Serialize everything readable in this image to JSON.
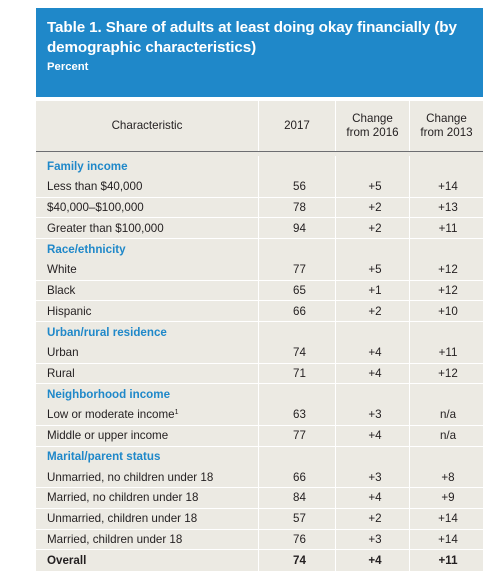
{
  "title": "Table 1. Share of adults at least doing okay financially (by demographic characteristics)",
  "unit": "Percent",
  "headers": {
    "characteristic": "Characteristic",
    "y2017": "2017",
    "change2016_line1": "Change",
    "change2016_line2": "from 2016",
    "change2013_line1": "Change",
    "change2013_line2": "from 2013"
  },
  "sections": [
    {
      "name": "Family income",
      "rows": [
        {
          "label": "Less than $40,000",
          "v2017": "56",
          "c2016": "+5",
          "c2013": "+14"
        },
        {
          "label": "$40,000–$100,000",
          "v2017": "78",
          "c2016": "+2",
          "c2013": "+13"
        },
        {
          "label": "Greater than $100,000",
          "v2017": "94",
          "c2016": "+2",
          "c2013": "+11"
        }
      ]
    },
    {
      "name": "Race/ethnicity",
      "rows": [
        {
          "label": "White",
          "v2017": "77",
          "c2016": "+5",
          "c2013": "+12"
        },
        {
          "label": "Black",
          "v2017": "65",
          "c2016": "+1",
          "c2013": "+12"
        },
        {
          "label": "Hispanic",
          "v2017": "66",
          "c2016": "+2",
          "c2013": "+10"
        }
      ]
    },
    {
      "name": "Urban/rural residence",
      "rows": [
        {
          "label": "Urban",
          "v2017": "74",
          "c2016": "+4",
          "c2013": "+11"
        },
        {
          "label": "Rural",
          "v2017": "71",
          "c2016": "+4",
          "c2013": "+12"
        }
      ]
    },
    {
      "name": "Neighborhood income",
      "rows": [
        {
          "label": "Low or moderate income",
          "footnote": "1",
          "v2017": "63",
          "c2016": "+3",
          "c2013": "n/a"
        },
        {
          "label": "Middle or upper income",
          "v2017": "77",
          "c2016": "+4",
          "c2013": "n/a"
        }
      ]
    },
    {
      "name": "Marital/parent status",
      "rows": [
        {
          "label": "Unmarried, no children under 18",
          "v2017": "66",
          "c2016": "+3",
          "c2013": "+8"
        },
        {
          "label": "Married, no children under 18",
          "v2017": "84",
          "c2016": "+4",
          "c2013": "+9"
        },
        {
          "label": "Unmarried, children under 18",
          "v2017": "57",
          "c2016": "+2",
          "c2013": "+14"
        },
        {
          "label": "Married, children under 18",
          "v2017": "76",
          "c2016": "+3",
          "c2013": "+14"
        }
      ]
    }
  ],
  "overall": {
    "label": "Overall",
    "v2017": "74",
    "c2016": "+4",
    "c2013": "+11"
  },
  "colors": {
    "accent": "#1f88c9",
    "table_bg": "#eceae3",
    "text": "#231f20"
  }
}
